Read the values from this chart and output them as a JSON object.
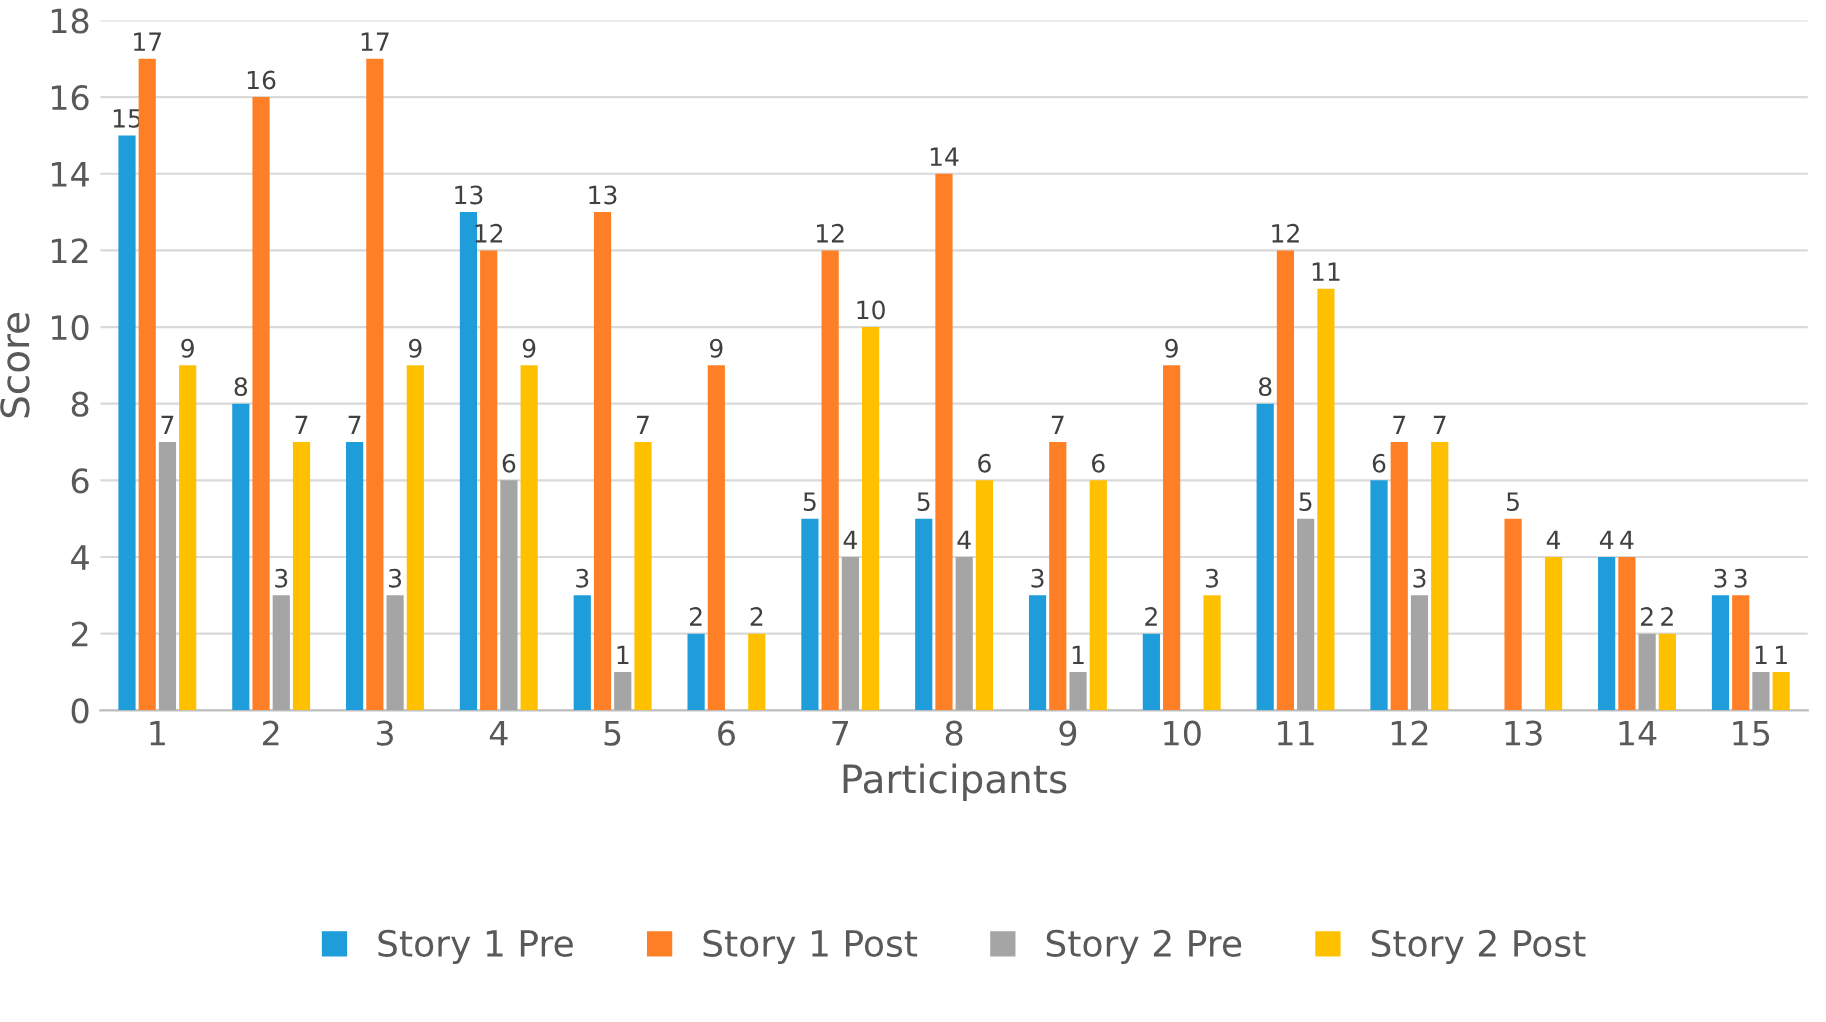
{
  "chart_data": {
    "type": "bar",
    "xlabel": "Participants",
    "ylabel": "Score",
    "categories": [
      "1",
      "2",
      "3",
      "4",
      "5",
      "6",
      "7",
      "8",
      "9",
      "10",
      "11",
      "12",
      "13",
      "14",
      "15"
    ],
    "series": [
      {
        "name": "Story 1 Pre",
        "color": "#1f9ddb",
        "values": [
          15,
          8,
          7,
          13,
          3,
          2,
          5,
          5,
          3,
          2,
          8,
          6,
          null,
          4,
          3
        ]
      },
      {
        "name": "Story 1 Post",
        "color": "#ff7f27",
        "values": [
          17,
          16,
          17,
          12,
          13,
          9,
          12,
          14,
          7,
          9,
          12,
          7,
          5,
          4,
          3
        ]
      },
      {
        "name": "Story 2 Pre",
        "color": "#a5a5a5",
        "values": [
          7,
          3,
          3,
          6,
          1,
          null,
          4,
          4,
          1,
          null,
          5,
          3,
          null,
          2,
          1
        ]
      },
      {
        "name": "Story 2 Post",
        "color": "#ffc000",
        "values": [
          9,
          7,
          9,
          9,
          7,
          2,
          10,
          6,
          6,
          3,
          11,
          7,
          4,
          2,
          1
        ]
      }
    ],
    "ylim": [
      0,
      18
    ],
    "yticks": [
      0,
      2,
      4,
      6,
      8,
      10,
      12,
      14,
      16,
      18
    ],
    "grid": "y",
    "legend": "bottom",
    "data_labels": true
  }
}
